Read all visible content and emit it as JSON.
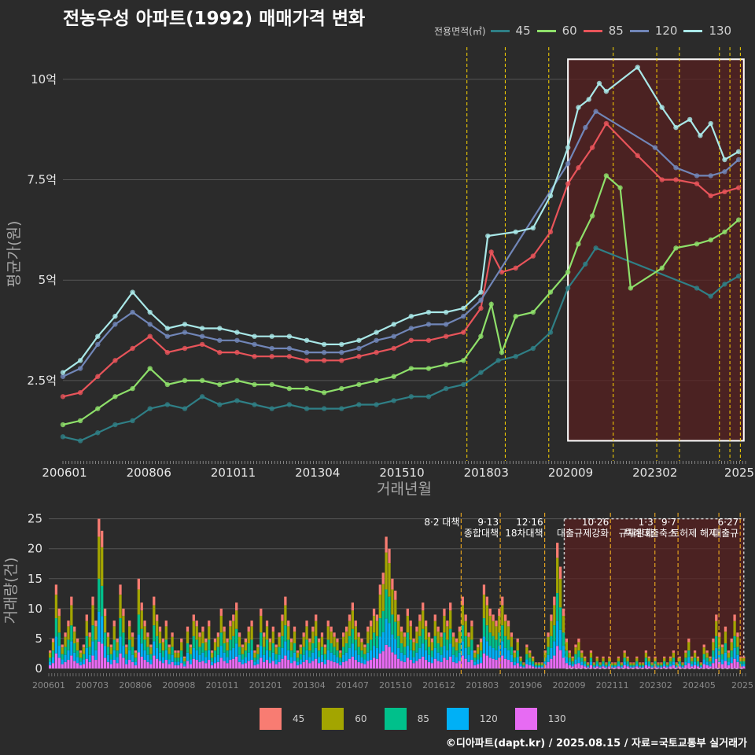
{
  "title": "전농우성 아파트(1992) 매매가격 변화",
  "legend_title": "전용면적(㎡)",
  "footer": "©디아파트(dapt.kr) / 2025.08.15 / 자료=국토교통부 실거래가",
  "colors": {
    "background": "#2b2b2b",
    "grid": "#555555",
    "highlight_box": "#ffffff",
    "highlight_fill": "#5a2020",
    "policy_line": "#ffd700",
    "policy_line_bottom": "#e0a020"
  },
  "chart_data": [
    {
      "type": "line",
      "title": "전농우성 아파트(1992) 매매가격 변화",
      "xlabel": "거래년월",
      "ylabel": "평균가(원)",
      "x_ticks": [
        "200601",
        "200806",
        "201011",
        "201304",
        "201510",
        "201803",
        "202009",
        "202302",
        "2025"
      ],
      "y_ticks": [
        {
          "value": 2.5,
          "label": "2.5억"
        },
        {
          "value": 5,
          "label": "5억"
        },
        {
          "value": 7.5,
          "label": "7.5억"
        },
        {
          "value": 10,
          "label": "10억"
        }
      ],
      "ylim": [
        0.5,
        10.8
      ],
      "xlim": [
        2006.0,
        2025.6
      ],
      "grid": true,
      "legend_position": "top-right",
      "highlight_range": {
        "x": [
          2020.5,
          2025.55
        ],
        "y": [
          1.0,
          10.5
        ]
      },
      "policy_dates": [
        2017.6,
        2018.7,
        2019.95,
        2021.8,
        2023.05,
        2023.7,
        2024.85,
        2025.15,
        2025.45
      ],
      "series": [
        {
          "name": "45",
          "color": "#2f7f86",
          "points": [
            [
              2006.0,
              1.1
            ],
            [
              2006.5,
              1.0
            ],
            [
              2007.0,
              1.2
            ],
            [
              2007.5,
              1.4
            ],
            [
              2008.0,
              1.5
            ],
            [
              2008.5,
              1.8
            ],
            [
              2009.0,
              1.9
            ],
            [
              2009.5,
              1.8
            ],
            [
              2010.0,
              2.1
            ],
            [
              2010.5,
              1.9
            ],
            [
              2011.0,
              2.0
            ],
            [
              2011.5,
              1.9
            ],
            [
              2012.0,
              1.8
            ],
            [
              2012.5,
              1.9
            ],
            [
              2013.0,
              1.8
            ],
            [
              2013.5,
              1.8
            ],
            [
              2014.0,
              1.8
            ],
            [
              2014.5,
              1.9
            ],
            [
              2015.0,
              1.9
            ],
            [
              2015.5,
              2.0
            ],
            [
              2016.0,
              2.1
            ],
            [
              2016.5,
              2.1
            ],
            [
              2017.0,
              2.3
            ],
            [
              2017.5,
              2.4
            ],
            [
              2018.0,
              2.7
            ],
            [
              2018.5,
              3.0
            ],
            [
              2019.0,
              3.1
            ],
            [
              2019.5,
              3.3
            ],
            [
              2020.0,
              3.7
            ],
            [
              2020.5,
              4.8
            ],
            [
              2021.0,
              5.4
            ],
            [
              2021.3,
              5.8
            ],
            [
              2024.2,
              4.8
            ],
            [
              2024.6,
              4.6
            ],
            [
              2025.0,
              4.9
            ],
            [
              2025.4,
              5.1
            ]
          ]
        },
        {
          "name": "60",
          "color": "#8ee06a",
          "points": [
            [
              2006.0,
              1.4
            ],
            [
              2006.5,
              1.5
            ],
            [
              2007.0,
              1.8
            ],
            [
              2007.5,
              2.1
            ],
            [
              2008.0,
              2.3
            ],
            [
              2008.5,
              2.8
            ],
            [
              2009.0,
              2.4
            ],
            [
              2009.5,
              2.5
            ],
            [
              2010.0,
              2.5
            ],
            [
              2010.5,
              2.4
            ],
            [
              2011.0,
              2.5
            ],
            [
              2011.5,
              2.4
            ],
            [
              2012.0,
              2.4
            ],
            [
              2012.5,
              2.3
            ],
            [
              2013.0,
              2.3
            ],
            [
              2013.5,
              2.2
            ],
            [
              2014.0,
              2.3
            ],
            [
              2014.5,
              2.4
            ],
            [
              2015.0,
              2.5
            ],
            [
              2015.5,
              2.6
            ],
            [
              2016.0,
              2.8
            ],
            [
              2016.5,
              2.8
            ],
            [
              2017.0,
              2.9
            ],
            [
              2017.5,
              3.0
            ],
            [
              2018.0,
              3.6
            ],
            [
              2018.3,
              4.4
            ],
            [
              2018.6,
              3.2
            ],
            [
              2019.0,
              4.1
            ],
            [
              2019.5,
              4.2
            ],
            [
              2020.0,
              4.7
            ],
            [
              2020.5,
              5.2
            ],
            [
              2020.8,
              5.9
            ],
            [
              2021.2,
              6.6
            ],
            [
              2021.6,
              7.6
            ],
            [
              2022.0,
              7.3
            ],
            [
              2022.3,
              4.8
            ],
            [
              2023.2,
              5.3
            ],
            [
              2023.6,
              5.8
            ],
            [
              2024.2,
              5.9
            ],
            [
              2024.6,
              6.0
            ],
            [
              2025.0,
              6.2
            ],
            [
              2025.4,
              6.5
            ]
          ]
        },
        {
          "name": "85",
          "color": "#e8545a",
          "points": [
            [
              2006.0,
              2.1
            ],
            [
              2006.5,
              2.2
            ],
            [
              2007.0,
              2.6
            ],
            [
              2007.5,
              3.0
            ],
            [
              2008.0,
              3.3
            ],
            [
              2008.5,
              3.6
            ],
            [
              2009.0,
              3.2
            ],
            [
              2009.5,
              3.3
            ],
            [
              2010.0,
              3.4
            ],
            [
              2010.5,
              3.2
            ],
            [
              2011.0,
              3.2
            ],
            [
              2011.5,
              3.1
            ],
            [
              2012.0,
              3.1
            ],
            [
              2012.5,
              3.1
            ],
            [
              2013.0,
              3.0
            ],
            [
              2013.5,
              3.0
            ],
            [
              2014.0,
              3.0
            ],
            [
              2014.5,
              3.1
            ],
            [
              2015.0,
              3.2
            ],
            [
              2015.5,
              3.3
            ],
            [
              2016.0,
              3.5
            ],
            [
              2016.5,
              3.5
            ],
            [
              2017.0,
              3.6
            ],
            [
              2017.5,
              3.7
            ],
            [
              2018.0,
              4.3
            ],
            [
              2018.3,
              5.7
            ],
            [
              2018.6,
              5.2
            ],
            [
              2019.0,
              5.3
            ],
            [
              2019.5,
              5.6
            ],
            [
              2020.0,
              6.2
            ],
            [
              2020.5,
              7.4
            ],
            [
              2020.8,
              7.8
            ],
            [
              2021.2,
              8.3
            ],
            [
              2021.6,
              8.9
            ],
            [
              2022.5,
              8.1
            ],
            [
              2023.2,
              7.5
            ],
            [
              2023.6,
              7.5
            ],
            [
              2024.2,
              7.4
            ],
            [
              2024.6,
              7.1
            ],
            [
              2025.0,
              7.2
            ],
            [
              2025.4,
              7.3
            ]
          ]
        },
        {
          "name": "120",
          "color": "#7186b8",
          "points": [
            [
              2006.0,
              2.6
            ],
            [
              2006.5,
              2.8
            ],
            [
              2007.0,
              3.4
            ],
            [
              2007.5,
              3.9
            ],
            [
              2008.0,
              4.2
            ],
            [
              2008.5,
              3.9
            ],
            [
              2009.0,
              3.6
            ],
            [
              2009.5,
              3.7
            ],
            [
              2010.0,
              3.6
            ],
            [
              2010.5,
              3.5
            ],
            [
              2011.0,
              3.5
            ],
            [
              2011.5,
              3.4
            ],
            [
              2012.0,
              3.3
            ],
            [
              2012.5,
              3.3
            ],
            [
              2013.0,
              3.2
            ],
            [
              2013.5,
              3.2
            ],
            [
              2014.0,
              3.2
            ],
            [
              2014.5,
              3.3
            ],
            [
              2015.0,
              3.5
            ],
            [
              2015.5,
              3.6
            ],
            [
              2016.0,
              3.8
            ],
            [
              2016.5,
              3.9
            ],
            [
              2017.0,
              3.9
            ],
            [
              2017.5,
              4.1
            ],
            [
              2018.0,
              4.5
            ],
            [
              2020.5,
              7.9
            ],
            [
              2021.0,
              8.8
            ],
            [
              2021.3,
              9.2
            ],
            [
              2023.0,
              8.3
            ],
            [
              2023.6,
              7.8
            ],
            [
              2024.2,
              7.6
            ],
            [
              2024.6,
              7.6
            ],
            [
              2025.0,
              7.7
            ],
            [
              2025.4,
              8.0
            ]
          ]
        },
        {
          "name": "130",
          "color": "#a9e8e8",
          "points": [
            [
              2006.0,
              2.7
            ],
            [
              2006.5,
              3.0
            ],
            [
              2007.0,
              3.6
            ],
            [
              2007.5,
              4.1
            ],
            [
              2008.0,
              4.7
            ],
            [
              2008.5,
              4.2
            ],
            [
              2009.0,
              3.8
            ],
            [
              2009.5,
              3.9
            ],
            [
              2010.0,
              3.8
            ],
            [
              2010.5,
              3.8
            ],
            [
              2011.0,
              3.7
            ],
            [
              2011.5,
              3.6
            ],
            [
              2012.0,
              3.6
            ],
            [
              2012.5,
              3.6
            ],
            [
              2013.0,
              3.5
            ],
            [
              2013.5,
              3.4
            ],
            [
              2014.0,
              3.4
            ],
            [
              2014.5,
              3.5
            ],
            [
              2015.0,
              3.7
            ],
            [
              2015.5,
              3.9
            ],
            [
              2016.0,
              4.1
            ],
            [
              2016.5,
              4.2
            ],
            [
              2017.0,
              4.2
            ],
            [
              2017.5,
              4.3
            ],
            [
              2018.0,
              4.7
            ],
            [
              2018.2,
              6.1
            ],
            [
              2019.0,
              6.2
            ],
            [
              2019.5,
              6.3
            ],
            [
              2020.0,
              7.1
            ],
            [
              2020.5,
              8.3
            ],
            [
              2020.8,
              9.3
            ],
            [
              2021.1,
              9.5
            ],
            [
              2021.4,
              9.9
            ],
            [
              2021.6,
              9.7
            ],
            [
              2022.5,
              10.3
            ],
            [
              2023.2,
              9.3
            ],
            [
              2023.6,
              8.8
            ],
            [
              2024.0,
              9.0
            ],
            [
              2024.3,
              8.6
            ],
            [
              2024.6,
              8.9
            ],
            [
              2025.0,
              8.0
            ],
            [
              2025.4,
              8.2
            ]
          ]
        }
      ]
    },
    {
      "type": "bar",
      "stacked": true,
      "ylabel": "거래량(건)",
      "x_ticks": [
        "200601",
        "200703",
        "200806",
        "200908",
        "201011",
        "201201",
        "201304",
        "201407",
        "201510",
        "201612",
        "201803",
        "201906",
        "202009",
        "202111",
        "202302",
        "202405",
        "2025"
      ],
      "y_ticks": [
        0,
        5,
        10,
        15,
        20,
        25
      ],
      "ylim": [
        0,
        26
      ],
      "xlim": [
        2006.0,
        2025.6
      ],
      "highlight_range": {
        "x": [
          2020.5,
          2025.55
        ]
      },
      "annotations": [
        {
          "x": 2017.6,
          "lines": [
            "8·2 대책"
          ]
        },
        {
          "x": 2018.7,
          "lines": [
            "9·13",
            "종합대책"
          ]
        },
        {
          "x": 2019.95,
          "lines": [
            "12·16",
            "18차대책"
          ]
        },
        {
          "x": 2021.8,
          "lines": [
            "10·26",
            "대출규제강화"
          ]
        },
        {
          "x": 2023.05,
          "lines": [
            "1·3",
            "규제완화"
          ]
        },
        {
          "x": 2023.7,
          "lines": [
            "9·7",
            "특례대출축소"
          ]
        },
        {
          "x": 2024.85,
          "lines": [
            "",
            "토허제 해제"
          ]
        },
        {
          "x": 2025.45,
          "lines": [
            "6·27",
            "대출규"
          ]
        }
      ],
      "series_names": [
        "45",
        "60",
        "85",
        "120",
        "130"
      ],
      "series_colors": [
        "#f87c72",
        "#a3a500",
        "#00c08b",
        "#00b0f6",
        "#e76bf3"
      ],
      "monthly_totals": [
        3,
        5,
        14,
        10,
        4,
        6,
        8,
        12,
        7,
        5,
        3,
        4,
        9,
        6,
        12,
        8,
        25,
        23,
        10,
        6,
        4,
        8,
        5,
        14,
        10,
        4,
        8,
        6,
        3,
        15,
        11,
        8,
        6,
        4,
        12,
        9,
        7,
        5,
        8,
        4,
        6,
        3,
        3,
        5,
        2,
        7,
        4,
        9,
        8,
        6,
        7,
        5,
        8,
        3,
        5,
        6,
        10,
        7,
        5,
        8,
        9,
        11,
        6,
        4,
        5,
        7,
        8,
        3,
        4,
        10,
        6,
        8,
        5,
        7,
        4,
        6,
        9,
        12,
        8,
        5,
        7,
        3,
        4,
        6,
        8,
        5,
        7,
        9,
        5,
        6,
        4,
        8,
        7,
        6,
        5,
        3,
        6,
        7,
        9,
        11,
        8,
        6,
        5,
        4,
        7,
        8,
        10,
        9,
        14,
        16,
        22,
        20,
        15,
        13,
        9,
        7,
        6,
        10,
        8,
        5,
        7,
        9,
        11,
        8,
        6,
        5,
        9,
        7,
        6,
        10,
        8,
        11,
        6,
        5,
        7,
        12,
        9,
        6,
        8,
        3,
        4,
        5,
        14,
        12,
        10,
        9,
        8,
        10,
        12,
        9,
        8,
        6,
        3,
        5,
        2,
        1,
        4,
        3,
        2,
        1,
        1,
        1,
        3,
        6,
        9,
        12,
        21,
        17,
        10,
        5,
        3,
        2,
        4,
        5,
        3,
        2,
        1,
        3,
        1,
        2,
        1,
        2,
        1,
        2,
        1,
        1,
        2,
        1,
        3,
        2,
        1,
        1,
        2,
        1,
        1,
        3,
        2,
        1,
        2,
        1,
        1,
        2,
        1,
        2,
        3,
        1,
        2,
        1,
        3,
        5,
        2,
        3,
        2,
        1,
        4,
        3,
        2,
        5,
        9,
        6,
        4,
        7,
        3,
        5,
        9,
        6,
        2,
        2
      ]
    }
  ]
}
